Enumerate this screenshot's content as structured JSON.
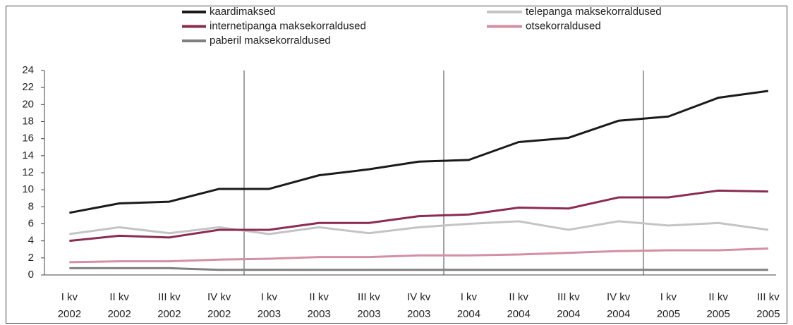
{
  "chart_data": {
    "type": "line",
    "categories": [
      [
        "I kv",
        "2002"
      ],
      [
        "II kv",
        "2002"
      ],
      [
        "III kv",
        "2002"
      ],
      [
        "IV kv",
        "2002"
      ],
      [
        "I kv",
        "2003"
      ],
      [
        "II kv",
        "2003"
      ],
      [
        "III kv",
        "2003"
      ],
      [
        "IV kv",
        "2003"
      ],
      [
        "I kv",
        "2004"
      ],
      [
        "II kv",
        "2004"
      ],
      [
        "III kv",
        "2004"
      ],
      [
        "IV kv",
        "2004"
      ],
      [
        "I kv",
        "2005"
      ],
      [
        "II kv",
        "2005"
      ],
      [
        "III kv",
        "2005"
      ]
    ],
    "series": [
      {
        "name": "kaardimaksed",
        "color": "#1a1a1a",
        "values": [
          7.3,
          8.4,
          8.6,
          10.1,
          10.1,
          11.7,
          12.4,
          13.3,
          13.5,
          15.6,
          16.1,
          18.1,
          18.6,
          20.8,
          21.6
        ]
      },
      {
        "name": "telepanga maksekorraldused",
        "color": "#c4c4c4",
        "values": [
          4.8,
          5.6,
          4.9,
          5.6,
          4.8,
          5.6,
          4.9,
          5.6,
          6.0,
          6.3,
          5.3,
          6.3,
          5.8,
          6.1,
          5.3
        ]
      },
      {
        "name": "internetipanga maksekorraldused",
        "color": "#8b2c52",
        "values": [
          4.0,
          4.6,
          4.4,
          5.3,
          5.3,
          6.1,
          6.1,
          6.9,
          7.1,
          7.9,
          7.8,
          9.1,
          9.1,
          9.9,
          9.8
        ]
      },
      {
        "name": "otsekorraldused",
        "color": "#d38fa3",
        "values": [
          1.5,
          1.6,
          1.6,
          1.8,
          1.9,
          2.1,
          2.1,
          2.3,
          2.3,
          2.4,
          2.6,
          2.8,
          2.9,
          2.9,
          3.1
        ]
      },
      {
        "name": "paberil maksekorraldused",
        "color": "#808080",
        "values": [
          0.8,
          0.8,
          0.8,
          0.6,
          0.6,
          0.6,
          0.6,
          0.6,
          0.6,
          0.6,
          0.6,
          0.6,
          0.6,
          0.6,
          0.6
        ]
      }
    ],
    "ylim": [
      0,
      24
    ],
    "yticks": [
      0,
      2,
      4,
      6,
      8,
      10,
      12,
      14,
      16,
      18,
      20,
      22,
      24
    ]
  }
}
